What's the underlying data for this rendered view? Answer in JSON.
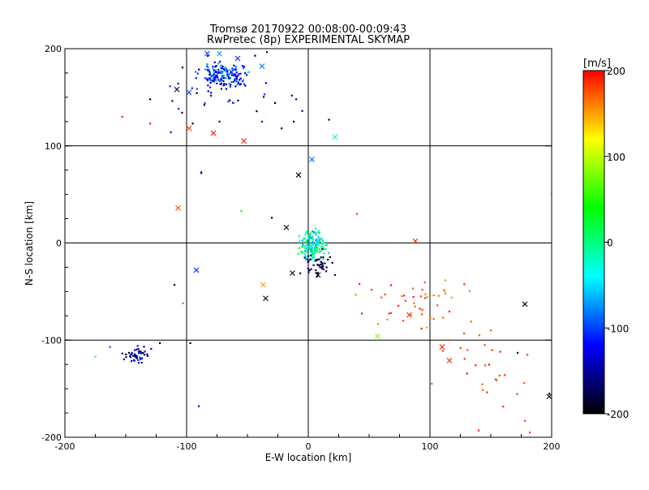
{
  "chart_data": {
    "type": "scatter",
    "title": "Tromsø 20170922 00:08:00-00:09:43",
    "subtitle": "RwPretec (8p) EXPERIMENTAL SKYMAP",
    "xlabel": "E-W location [km]",
    "ylabel": "N-S location [km]",
    "xlim": [
      -200,
      200
    ],
    "ylim": [
      -200,
      200
    ],
    "xticks": [
      "-200",
      "-100",
      "0",
      "100",
      "200"
    ],
    "yticks": [
      "-200",
      "-100",
      "0",
      "100",
      "200"
    ],
    "grid_lines": [
      -100,
      0,
      100
    ],
    "colorbar": {
      "label": "[m/s]",
      "range": [
        -200,
        200
      ],
      "ticks": [
        "200",
        "100",
        "0",
        "-100",
        "-200"
      ],
      "stops": [
        "#ff0000",
        "#ffff00",
        "#00ff00",
        "#00ffff",
        "#0000ff",
        "#000000"
      ]
    },
    "crosses": [
      [
        -83,
        195,
        -100
      ],
      [
        -73,
        195,
        -70
      ],
      [
        -58,
        190,
        -110
      ],
      [
        -38,
        182,
        -80
      ],
      [
        -76,
        172,
        -120
      ],
      [
        -63,
        176,
        -110
      ],
      [
        -108,
        158,
        -190
      ],
      [
        -98,
        155,
        -100
      ],
      [
        -98,
        118,
        180
      ],
      [
        -78,
        113,
        190
      ],
      [
        -53,
        105,
        195
      ],
      [
        22,
        109,
        -20
      ],
      [
        3,
        86,
        -90
      ],
      [
        -8,
        70,
        -200
      ],
      [
        -107,
        36,
        180
      ],
      [
        -18,
        16,
        -200
      ],
      [
        -92,
        -28,
        -110
      ],
      [
        -37,
        -43,
        150
      ],
      [
        -35,
        -57,
        -200
      ],
      [
        -13,
        -31,
        -200
      ],
      [
        8,
        -33,
        -200
      ],
      [
        88,
        2,
        190
      ],
      [
        57,
        -96,
        80
      ],
      [
        83,
        -74,
        190
      ],
      [
        110,
        -107,
        195
      ],
      [
        116,
        -121,
        190
      ],
      [
        178,
        -63,
        -200
      ],
      [
        198,
        -158,
        -200
      ]
    ],
    "clusters": [
      {
        "cx": -70,
        "cy": 172,
        "sx": 15,
        "sy": 9,
        "n": 150,
        "vmin": -150,
        "vmax": -60
      },
      {
        "cx": -70,
        "cy": 160,
        "sx": 40,
        "sy": 25,
        "n": 45,
        "vmin": -200,
        "vmax": -100
      },
      {
        "cx": 3,
        "cy": -3,
        "sx": 9,
        "sy": 12,
        "n": 170,
        "vmin": -80,
        "vmax": 40
      },
      {
        "cx": 8,
        "cy": -22,
        "sx": 10,
        "sy": 10,
        "n": 45,
        "vmin": -200,
        "vmax": -150
      },
      {
        "cx": -140,
        "cy": -115,
        "sx": 9,
        "sy": 7,
        "n": 45,
        "vmin": -200,
        "vmax": -100
      },
      {
        "cx": 85,
        "cy": -60,
        "sx": 35,
        "sy": 20,
        "n": 40,
        "vmin": 150,
        "vmax": 200
      },
      {
        "cx": 140,
        "cy": -130,
        "sx": 35,
        "sy": 45,
        "n": 22,
        "vmin": 170,
        "vmax": 200
      }
    ],
    "dots": [
      [
        -153,
        130,
        190
      ],
      [
        -130,
        123,
        190
      ],
      [
        -130,
        148,
        -200
      ],
      [
        -113,
        114,
        -130
      ],
      [
        -95,
        123,
        -200
      ],
      [
        -73,
        125,
        -150
      ],
      [
        -12,
        125,
        -200
      ],
      [
        -22,
        118,
        -190
      ],
      [
        -38,
        125,
        -110
      ],
      [
        -10,
        148,
        -150
      ],
      [
        -5,
        136,
        -160
      ],
      [
        17,
        127,
        -200
      ],
      [
        -88,
        72,
        -140
      ],
      [
        -55,
        33,
        40
      ],
      [
        -88,
        73,
        -110
      ],
      [
        40,
        30,
        180
      ],
      [
        -110,
        -43,
        -200
      ],
      [
        -103,
        -62,
        170
      ],
      [
        -175,
        -117,
        -20
      ],
      [
        -163,
        -107,
        -90
      ],
      [
        -122,
        -103,
        -200
      ],
      [
        -90,
        -168,
        -130
      ],
      [
        -97,
        -103,
        -200
      ],
      [
        42,
        -42,
        190
      ],
      [
        52,
        -48,
        180
      ],
      [
        60,
        -56,
        170
      ],
      [
        93,
        -88,
        190
      ],
      [
        128,
        -93,
        180
      ],
      [
        172,
        -113,
        -200
      ],
      [
        180,
        -115,
        180
      ],
      [
        178,
        -183,
        180
      ],
      [
        182,
        -195,
        180
      ],
      [
        198,
        -155,
        -200
      ],
      [
        200,
        50,
        -20
      ],
      [
        115,
        -100,
        180
      ],
      [
        125,
        -108,
        180
      ],
      [
        145,
        -105,
        180
      ],
      [
        150,
        -90,
        180
      ],
      [
        140,
        -193,
        190
      ],
      [
        68,
        -72,
        180
      ],
      [
        78,
        -80,
        180
      ],
      [
        15,
        -25,
        -200
      ],
      [
        -30,
        26,
        -200
      ]
    ]
  }
}
